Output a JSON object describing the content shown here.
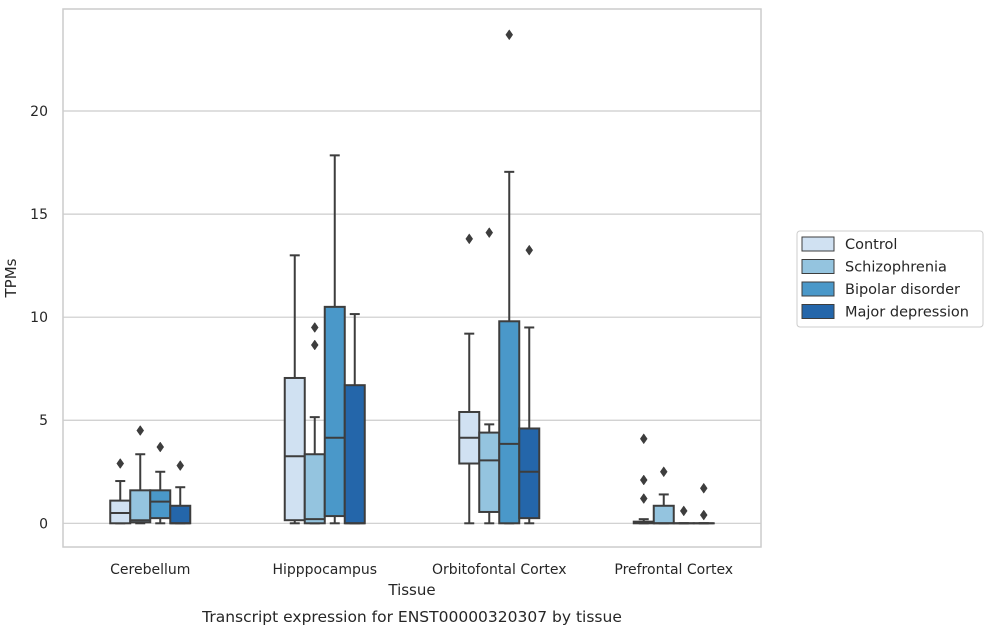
{
  "chart_data": {
    "type": "box",
    "title": "",
    "caption": "Transcript expression for ENST00000320307 by tissue",
    "xlabel": "Tissue",
    "ylabel": "TPMs",
    "ylim": [
      -1.15,
      24.95
    ],
    "yticks": [
      0,
      5,
      10,
      15,
      20
    ],
    "grid": true,
    "legend_position": "right",
    "categories": [
      "Cerebellum",
      "Hipppocampus",
      "Orbitofontal Cortex",
      "Prefrontal Cortex"
    ],
    "series": [
      {
        "name": "Control",
        "color": "#d0e1f2",
        "boxes": [
          {
            "whisker_low": 0,
            "q1": 0,
            "median": 0.5,
            "q3": 1.1,
            "whisker_high": 2.05,
            "outliers": [
              2.9
            ]
          },
          {
            "whisker_low": 0,
            "q1": 0.15,
            "median": 3.25,
            "q3": 7.05,
            "whisker_high": 13.0,
            "outliers": []
          },
          {
            "whisker_low": 0,
            "q1": 2.9,
            "median": 4.15,
            "q3": 5.4,
            "whisker_high": 9.2,
            "outliers": [
              13.8
            ]
          },
          {
            "whisker_low": 0,
            "q1": 0,
            "median": 0.02,
            "q3": 0.08,
            "whisker_high": 0.2,
            "outliers": [
              1.2,
              2.1,
              4.1
            ]
          }
        ]
      },
      {
        "name": "Schizophrenia",
        "color": "#94c4df",
        "boxes": [
          {
            "whisker_low": 0,
            "q1": 0.05,
            "median": 0.15,
            "q3": 1.6,
            "whisker_high": 3.35,
            "outliers": [
              4.5
            ]
          },
          {
            "whisker_low": 0,
            "q1": 0,
            "median": 0.2,
            "q3": 3.35,
            "whisker_high": 5.15,
            "outliers": [
              8.65,
              9.5
            ]
          },
          {
            "whisker_low": 0,
            "q1": 0.55,
            "median": 3.05,
            "q3": 4.4,
            "whisker_high": 4.8,
            "outliers": [
              14.1
            ]
          },
          {
            "whisker_low": 0,
            "q1": 0,
            "median": 0,
            "q3": 0.85,
            "whisker_high": 1.4,
            "outliers": [
              2.5
            ]
          }
        ]
      },
      {
        "name": "Bipolar disorder",
        "color": "#4a98c9",
        "boxes": [
          {
            "whisker_low": 0,
            "q1": 0.25,
            "median": 1.05,
            "q3": 1.6,
            "whisker_high": 2.5,
            "outliers": [
              3.7
            ]
          },
          {
            "whisker_low": 0,
            "q1": 0.35,
            "median": 4.15,
            "q3": 10.5,
            "whisker_high": 17.85,
            "outliers": []
          },
          {
            "whisker_low": 0,
            "q1": 0,
            "median": 3.85,
            "q3": 9.8,
            "whisker_high": 17.05,
            "outliers": [
              23.7
            ]
          },
          {
            "whisker_low": 0,
            "q1": 0,
            "median": 0,
            "q3": 0,
            "whisker_high": 0,
            "outliers": [
              0.6
            ]
          }
        ]
      },
      {
        "name": "Major depression",
        "color": "#2466aa",
        "boxes": [
          {
            "whisker_low": 0,
            "q1": 0,
            "median": 0,
            "q3": 0.85,
            "whisker_high": 1.75,
            "outliers": [
              2.8
            ]
          },
          {
            "whisker_low": 0,
            "q1": 0,
            "median": 0,
            "q3": 6.7,
            "whisker_high": 10.15,
            "outliers": []
          },
          {
            "whisker_low": 0,
            "q1": 0.25,
            "median": 2.5,
            "q3": 4.6,
            "whisker_high": 9.5,
            "outliers": [
              13.25
            ]
          },
          {
            "whisker_low": 0,
            "q1": 0,
            "median": 0,
            "q3": 0,
            "whisker_high": 0,
            "outliers": [
              0.4,
              1.7
            ]
          }
        ]
      }
    ]
  }
}
